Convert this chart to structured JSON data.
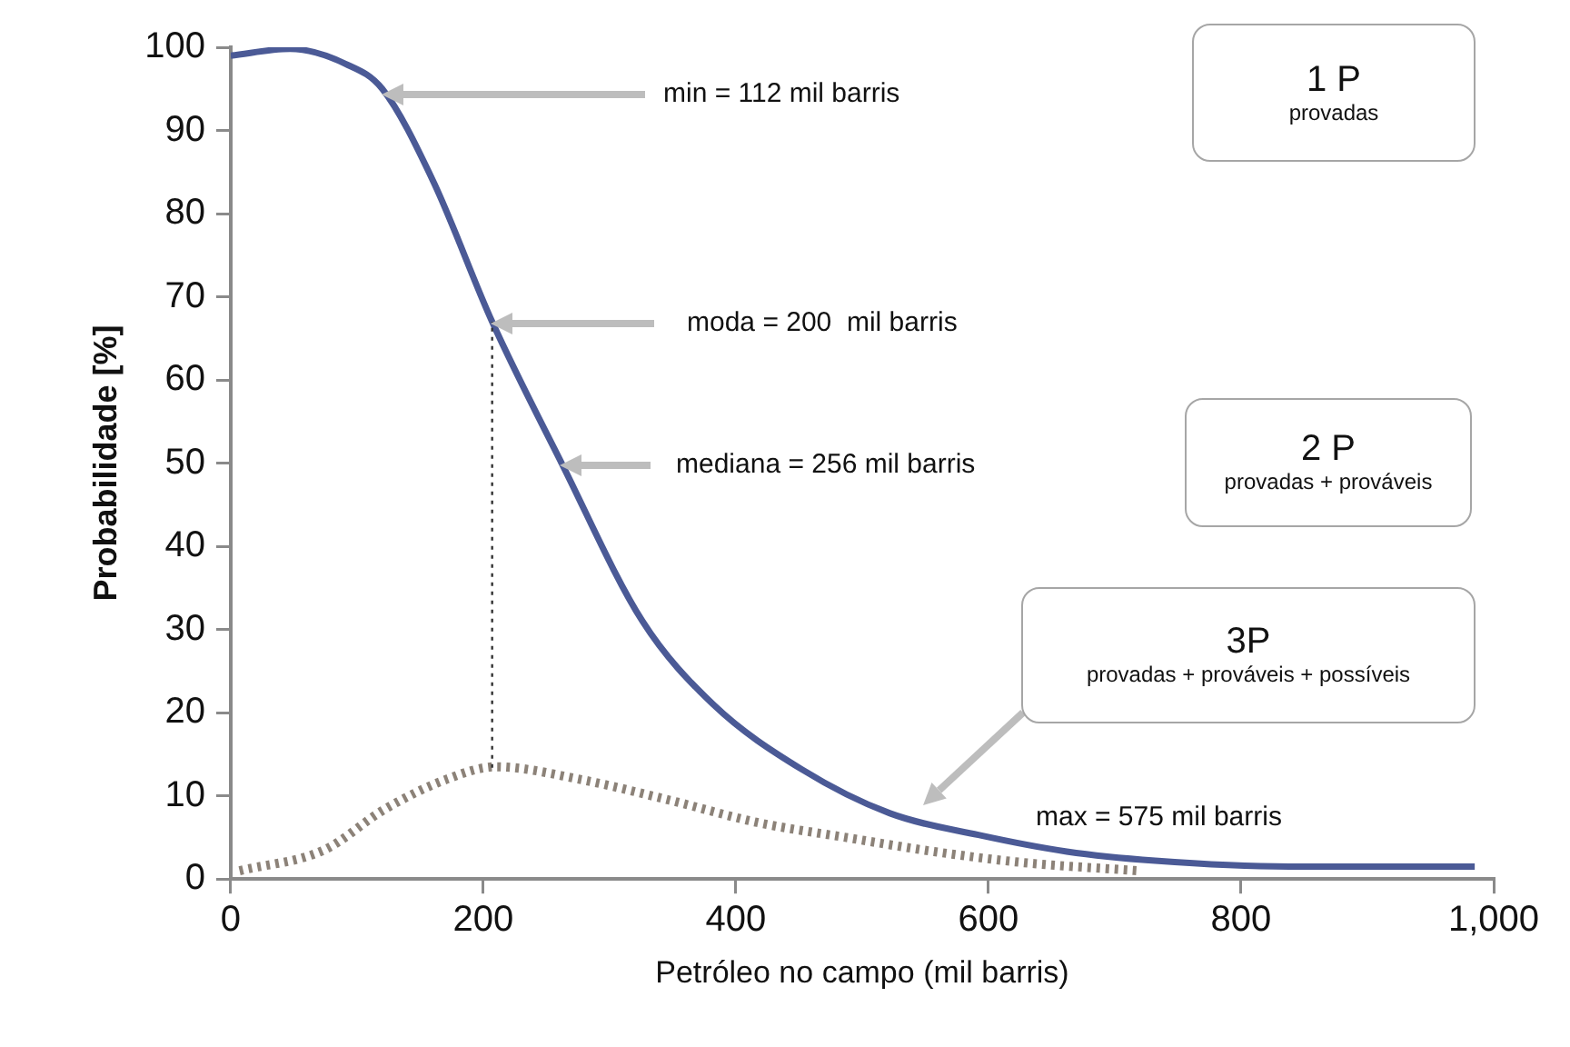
{
  "chart_data": {
    "type": "line",
    "xlabel": "Petróleo no campo (mil barris)",
    "ylabel": "Probabilidade [%]",
    "xlim": [
      0,
      1000
    ],
    "xticks": [
      0,
      200,
      400,
      600,
      800,
      {
        "value": 1000,
        "label": "1,000"
      }
    ],
    "ylim": [
      0,
      100
    ],
    "yticks": [
      0,
      10,
      20,
      30,
      40,
      50,
      60,
      70,
      80,
      90,
      100
    ],
    "grid": false,
    "legend": false,
    "marker": "none",
    "series": [
      {
        "color": "#4b5a96",
        "line_style": "solid",
        "x": [
          0,
          47,
          91,
          120,
          160,
          207,
          262,
          326,
          382,
          452,
          522,
          592,
          662,
          732,
          838,
          985
        ],
        "values": [
          99,
          99.8,
          98,
          95,
          84,
          67,
          50,
          31,
          21,
          13.2,
          7.9,
          5.3,
          3.3,
          2.2,
          1.5,
          1.5
        ]
      },
      {
        "color": "#8c8278",
        "line_style": "dotted",
        "x": [
          7,
          74,
          122,
          171,
          210,
          276,
          347,
          417,
          487,
          557,
          626,
          718
        ],
        "values": [
          1,
          3.5,
          8.4,
          12,
          13.5,
          12,
          9.5,
          6.8,
          5,
          3.3,
          2,
          1
        ]
      }
    ],
    "ref_lines": [
      {
        "axis": "x",
        "value": 207,
        "color": "#333333",
        "line_style": "dotted"
      }
    ],
    "annotations": [
      "min = 112 mil barris",
      "moda = 200  mil barris",
      "mediana = 256 mil barris",
      "3P",
      "provadas + prováveis + possíveis",
      "1 P",
      "provadas",
      "2 P",
      "provadas + prováveis",
      "max = 575 mil barris"
    ]
  }
}
